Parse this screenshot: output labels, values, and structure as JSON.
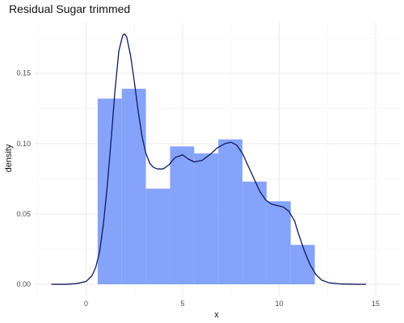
{
  "chart_data": {
    "type": "histogram-density",
    "title": "Residual Sugar trimmed",
    "xlabel": "x",
    "ylabel": "density",
    "xlim": [
      -2.7,
      16.3
    ],
    "ylim": [
      -0.008,
      0.186
    ],
    "x_ticks": [
      0,
      5,
      10,
      15
    ],
    "y_ticks": [
      0.0,
      0.05,
      0.1,
      0.15
    ],
    "x_tick_labels": [
      "0",
      "5",
      "10",
      "15"
    ],
    "y_tick_labels": [
      "0.00",
      "0.05",
      "0.10",
      "0.15"
    ],
    "grid": true,
    "bar_color": "#86a3fb",
    "curve_color": "#0d1a5e",
    "bins": [
      {
        "x0": 0.6,
        "x1": 1.85,
        "density": 0.132
      },
      {
        "x0": 1.85,
        "x1": 3.1,
        "density": 0.139
      },
      {
        "x0": 3.1,
        "x1": 4.35,
        "density": 0.068
      },
      {
        "x0": 4.35,
        "x1": 5.6,
        "density": 0.098
      },
      {
        "x0": 5.6,
        "x1": 6.85,
        "density": 0.093
      },
      {
        "x0": 6.85,
        "x1": 8.1,
        "density": 0.103
      },
      {
        "x0": 8.1,
        "x1": 9.35,
        "density": 0.073
      },
      {
        "x0": 9.35,
        "x1": 10.6,
        "density": 0.059
      },
      {
        "x0": 10.6,
        "x1": 11.85,
        "density": 0.028
      }
    ],
    "density_curve": {
      "x": [
        -1.8,
        -1.0,
        -0.5,
        0.0,
        0.3,
        0.5,
        0.7,
        0.9,
        1.1,
        1.3,
        1.5,
        1.7,
        1.9,
        2.0,
        2.1,
        2.3,
        2.5,
        2.7,
        2.9,
        3.1,
        3.3,
        3.5,
        3.7,
        4.0,
        4.3,
        4.6,
        5.0,
        5.3,
        5.6,
        6.0,
        6.4,
        6.8,
        7.2,
        7.5,
        7.8,
        8.1,
        8.4,
        8.7,
        9.0,
        9.3,
        9.6,
        9.9,
        10.2,
        10.5,
        10.8,
        11.0,
        11.3,
        11.6,
        11.9,
        12.2,
        12.6,
        13.2,
        14.0,
        14.5
      ],
      "y": [
        0.0,
        0.0,
        0.0005,
        0.002,
        0.006,
        0.012,
        0.023,
        0.043,
        0.07,
        0.103,
        0.138,
        0.166,
        0.177,
        0.178,
        0.176,
        0.163,
        0.144,
        0.123,
        0.105,
        0.093,
        0.086,
        0.083,
        0.082,
        0.082,
        0.085,
        0.09,
        0.092,
        0.089,
        0.087,
        0.088,
        0.092,
        0.097,
        0.1,
        0.101,
        0.099,
        0.093,
        0.084,
        0.075,
        0.066,
        0.06,
        0.057,
        0.056,
        0.055,
        0.052,
        0.045,
        0.036,
        0.024,
        0.014,
        0.007,
        0.003,
        0.001,
        0.0002,
        0.0,
        0.0
      ]
    }
  }
}
